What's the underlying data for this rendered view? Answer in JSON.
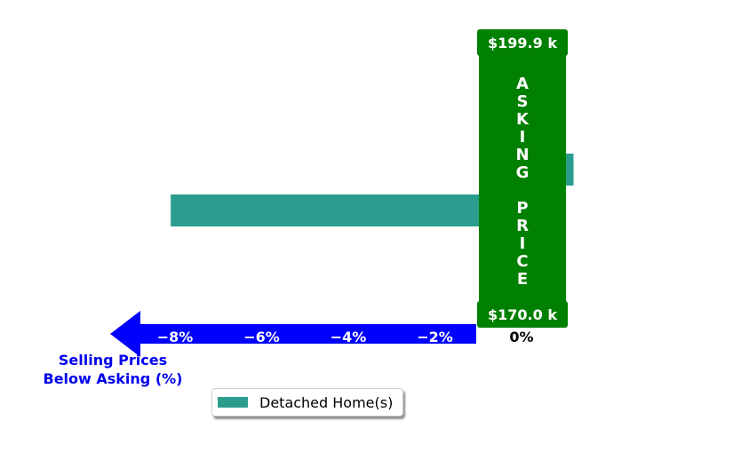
{
  "chart_data": {
    "type": "bar",
    "orientation": "horizontal",
    "xlim": [
      -9.5,
      1.0
    ],
    "x_ticks": [
      -8,
      -6,
      -4,
      -2,
      0
    ],
    "x_tick_labels": [
      "−8%",
      "−6%",
      "−4%",
      "−2%",
      "0%"
    ],
    "xlabel": "Selling Prices\nBelow Asking (%)",
    "series": [
      {
        "name": "Detached Home(s)",
        "color": "#2a9d8f",
        "bars": [
          {
            "value": 1.2
          },
          {
            "value": -8.1
          }
        ]
      }
    ],
    "asking_price_band": {
      "label": "ASKING PRICE",
      "top_price": "$199.9 k",
      "bottom_price": "$170.0 k",
      "color": "#008000"
    },
    "arrow_color": "#0000ff",
    "legend": {
      "position": "bottom-center",
      "entries": [
        "Detached Home(s)"
      ]
    }
  }
}
